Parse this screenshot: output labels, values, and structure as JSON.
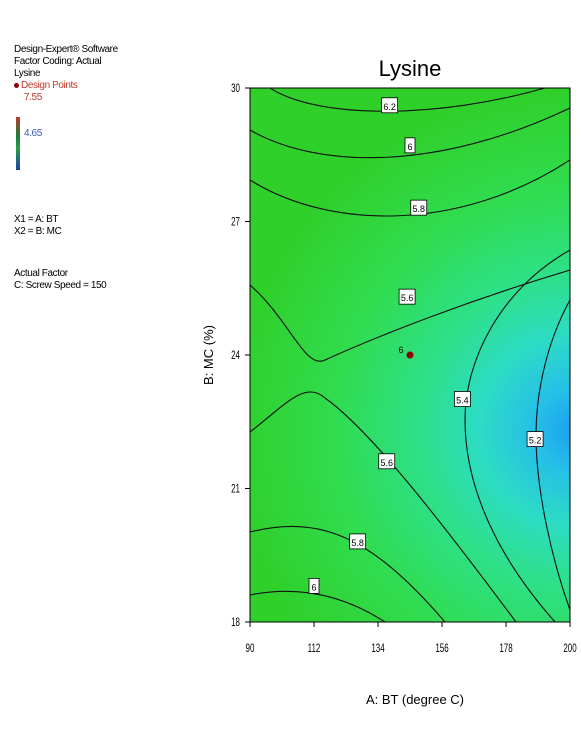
{
  "sidebar": {
    "software": "Design-Expert® Software",
    "coding": "Factor Coding: Actual",
    "response": "Lysine",
    "design_points_label": "Design Points",
    "max_value": "7.55",
    "min_value": "4.65",
    "x1": "X1 = A: BT",
    "x2": "X2 = B: MC",
    "actual_factor_heading": "Actual Factor",
    "actual_factor_value": "C: Screw Speed = 150"
  },
  "colors": {
    "green": "#2fe02a",
    "cyan": "#2fb4f0",
    "design_point": "#8b0000"
  },
  "chart_data": {
    "type": "contour",
    "title": "Lysine",
    "xlabel": "A: BT (degree C)",
    "ylabel": "B: MC (%)",
    "xlim": [
      90,
      200
    ],
    "ylim": [
      18,
      30
    ],
    "xticks": [
      "90",
      "112",
      "134",
      "156",
      "178",
      "200"
    ],
    "yticks": [
      "18",
      "21",
      "24",
      "27",
      "30"
    ],
    "contours": [
      {
        "level": "6.2",
        "label_at": [
          138,
          29.6
        ]
      },
      {
        "level": "6",
        "label_at": [
          145,
          28.7
        ]
      },
      {
        "level": "5.8",
        "label_at": [
          148,
          27.3
        ]
      },
      {
        "level": "5.6",
        "label_at": [
          144,
          25.3
        ]
      },
      {
        "level": "5.4",
        "label_at": [
          163,
          23.0
        ]
      },
      {
        "level": "5.2",
        "label_at": [
          188,
          22.1
        ]
      },
      {
        "level": "5.6",
        "label_at": [
          137,
          21.6
        ]
      },
      {
        "level": "5.8",
        "label_at": [
          127,
          19.8
        ]
      },
      {
        "level": "6",
        "label_at": [
          112,
          18.8
        ]
      }
    ],
    "design_points": [
      {
        "x": 145,
        "y": 24,
        "label": "6"
      }
    ]
  }
}
